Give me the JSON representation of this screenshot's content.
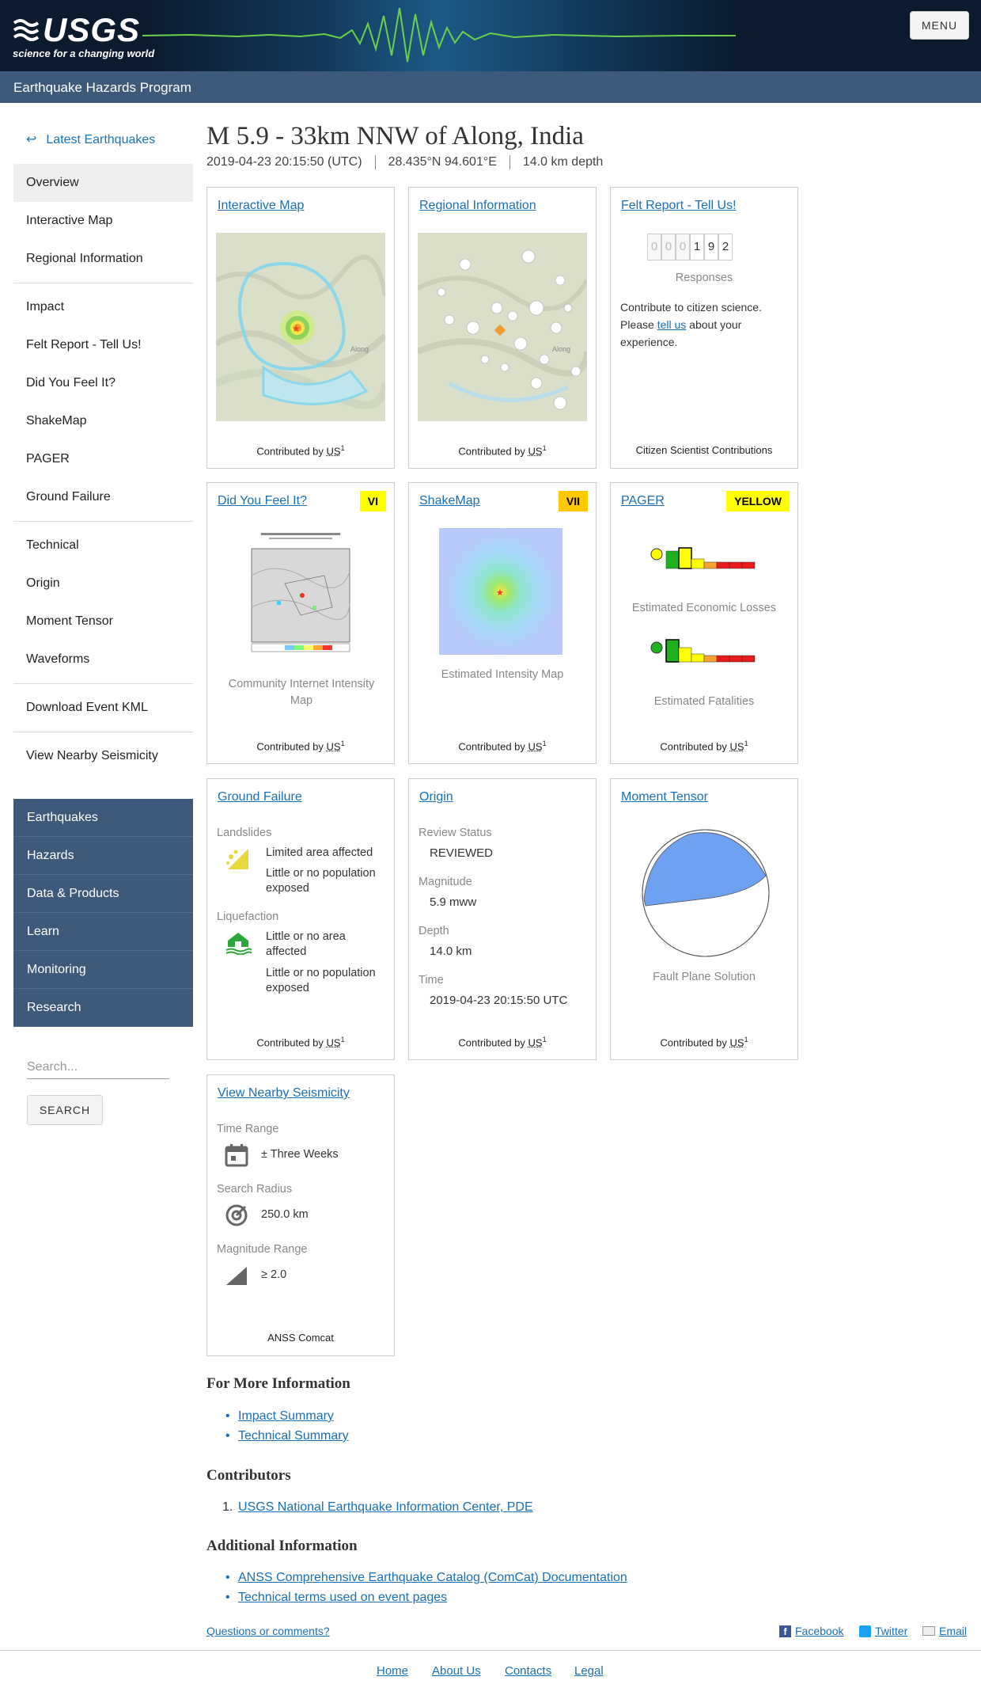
{
  "header": {
    "logo_text": "USGS",
    "logo_tagline": "science for a changing world",
    "menu_label": "MENU",
    "program": "Earthquake Hazards Program"
  },
  "sidebar": {
    "back_label": "Latest Earthquakes",
    "group1": [
      "Overview",
      "Interactive Map",
      "Regional Information"
    ],
    "group2": [
      "Impact",
      "Felt Report - Tell Us!",
      "Did You Feel It?",
      "ShakeMap",
      "PAGER",
      "Ground Failure"
    ],
    "group3": [
      "Technical",
      "Origin",
      "Moment Tensor",
      "Waveforms"
    ],
    "group4": [
      "Download Event KML"
    ],
    "group5": [
      "View Nearby Seismicity"
    ],
    "nav": [
      "Earthquakes",
      "Hazards",
      "Data & Products",
      "Learn",
      "Monitoring",
      "Research"
    ],
    "search_placeholder": "Search...",
    "search_button": "SEARCH"
  },
  "event": {
    "title": "M 5.9 - 33km NNW of Along, India",
    "time": "2019-04-23 20:15:50 (UTC)",
    "location": "28.435°N 94.601°E",
    "depth": "14.0 km depth"
  },
  "cards": {
    "contributed_by": "Contributed by",
    "contributor": "US",
    "contributor_sup": "1",
    "interactive_map": "Interactive Map",
    "regional_info": "Regional Information",
    "felt_report": {
      "title": "Felt Report - Tell Us!",
      "digits": [
        "0",
        "0",
        "0",
        "1",
        "9",
        "2"
      ],
      "responses": "Responses",
      "text_before": "Contribute to citizen science. Please ",
      "link": "tell us",
      "text_after": " about your experience.",
      "footer": "Citizen Scientist Contributions"
    },
    "dyfi": {
      "title": "Did You Feel It?",
      "badge": "VI",
      "caption": "Community Internet Intensity Map"
    },
    "shakemap": {
      "title": "ShakeMap",
      "badge": "VII",
      "caption": "Estimated Intensity Map"
    },
    "pager": {
      "title": "PAGER",
      "badge": "YELLOW",
      "caption1": "Estimated Economic Losses",
      "caption2": "Estimated Fatalities"
    },
    "ground_failure": {
      "title": "Ground Failure",
      "landslides": "Landslides",
      "ls1": "Limited area affected",
      "ls2": "Little or no population exposed",
      "liquefaction": "Liquefaction",
      "lq1": "Little or no area affected",
      "lq2": "Little or no population exposed"
    },
    "origin": {
      "title": "Origin",
      "review_label": "Review Status",
      "review": "REVIEWED",
      "mag_label": "Magnitude",
      "mag": "5.9 mww",
      "depth_label": "Depth",
      "depth": "14.0 km",
      "time_label": "Time",
      "time": "2019-04-23 20:15:50 UTC"
    },
    "moment_tensor": {
      "title": "Moment Tensor",
      "caption": "Fault Plane Solution"
    },
    "nearby": {
      "title": "View Nearby Seismicity",
      "time_label": "Time Range",
      "time": "± Three Weeks",
      "radius_label": "Search Radius",
      "radius": "250.0 km",
      "mag_label": "Magnitude Range",
      "mag": "≥ 2.0",
      "footer": "ANSS Comcat"
    }
  },
  "more_info": {
    "heading": "For More Information",
    "links": [
      "Impact Summary",
      "Technical Summary"
    ]
  },
  "contributors": {
    "heading": "Contributors",
    "items": [
      "USGS National Earthquake Information Center, PDE"
    ]
  },
  "additional": {
    "heading": "Additional Information",
    "links": [
      "ANSS Comprehensive Earthquake Catalog (ComCat) Documentation",
      "Technical terms used on event pages"
    ]
  },
  "share": {
    "questions": "Questions or comments?",
    "facebook": "Facebook",
    "twitter": "Twitter",
    "email": "Email"
  },
  "footer": [
    "Home",
    "About Us",
    "Contacts",
    "Legal"
  ],
  "colors": {
    "header_bg": "#0b1a2c",
    "subbar_bg": "#3d5a7b",
    "link": "#1a6fb5",
    "badge_vi": "#ffff00",
    "badge_vii": "#ffc800",
    "badge_yellow": "#ffff00"
  }
}
